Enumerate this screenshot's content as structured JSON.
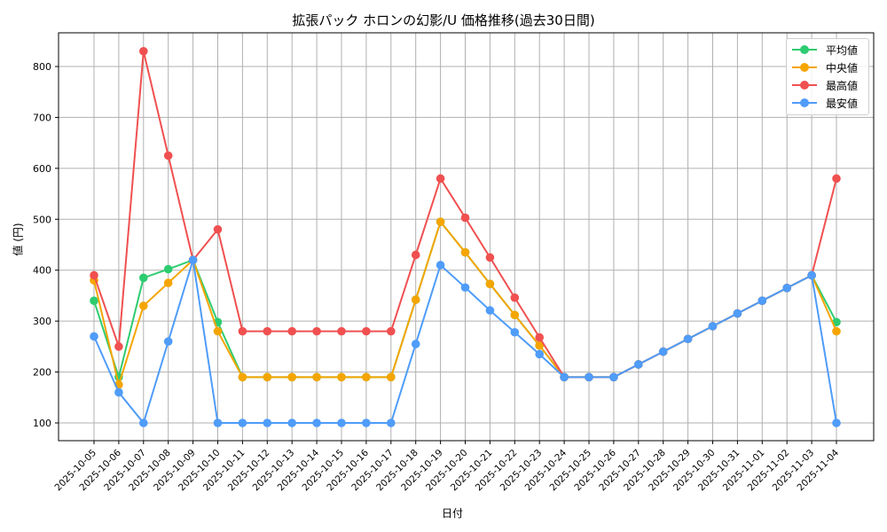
{
  "chart_data": {
    "type": "line",
    "title": "拡張パック ホロンの幻影/U 価格推移(過去30日間)",
    "xlabel": "日付",
    "ylabel": "値 (円)",
    "ylim": [
      65,
      865
    ],
    "yticks": [
      100,
      200,
      300,
      400,
      500,
      600,
      700,
      800
    ],
    "grid": true,
    "legend_position": "upper right",
    "x": [
      "2025-10-05",
      "2025-10-06",
      "2025-10-07",
      "2025-10-08",
      "2025-10-09",
      "2025-10-10",
      "2025-10-11",
      "2025-10-12",
      "2025-10-13",
      "2025-10-14",
      "2025-10-15",
      "2025-10-16",
      "2025-10-17",
      "2025-10-18",
      "2025-10-19",
      "2025-10-20",
      "2025-10-21",
      "2025-10-22",
      "2025-10-23",
      "2025-10-24",
      "2025-10-25",
      "2025-10-26",
      "2025-10-27",
      "2025-10-28",
      "2025-10-29",
      "2025-10-30",
      "2025-10-31",
      "2025-11-01",
      "2025-11-02",
      "2025-11-03",
      "2025-11-04"
    ],
    "series": [
      {
        "name": "平均値",
        "color": "#2ecc71",
        "values": [
          340,
          190,
          385,
          402,
          420,
          298,
          190,
          190,
          190,
          190,
          190,
          190,
          190,
          342,
          495,
          435,
          373,
          312,
          252,
          190,
          190,
          190,
          215,
          240,
          265,
          290,
          315,
          340,
          365,
          390,
          298
        ]
      },
      {
        "name": "中央値",
        "color": "#f5a500",
        "values": [
          380,
          175,
          330,
          375,
          420,
          280,
          190,
          190,
          190,
          190,
          190,
          190,
          190,
          342,
          495,
          435,
          373,
          312,
          252,
          190,
          190,
          190,
          215,
          240,
          265,
          290,
          315,
          340,
          365,
          390,
          280
        ]
      },
      {
        "name": "最高値",
        "color": "#f05050",
        "values": [
          390,
          250,
          830,
          625,
          420,
          480,
          280,
          280,
          280,
          280,
          280,
          280,
          280,
          430,
          580,
          503,
          425,
          346,
          268,
          190,
          190,
          190,
          215,
          240,
          265,
          290,
          315,
          340,
          365,
          390,
          580
        ]
      },
      {
        "name": "最安値",
        "color": "#4f9cf9",
        "values": [
          270,
          160,
          100,
          260,
          420,
          100,
          100,
          100,
          100,
          100,
          100,
          100,
          100,
          255,
          410,
          366,
          321,
          278,
          235,
          190,
          190,
          190,
          215,
          240,
          265,
          290,
          315,
          340,
          365,
          390,
          100
        ]
      }
    ]
  }
}
